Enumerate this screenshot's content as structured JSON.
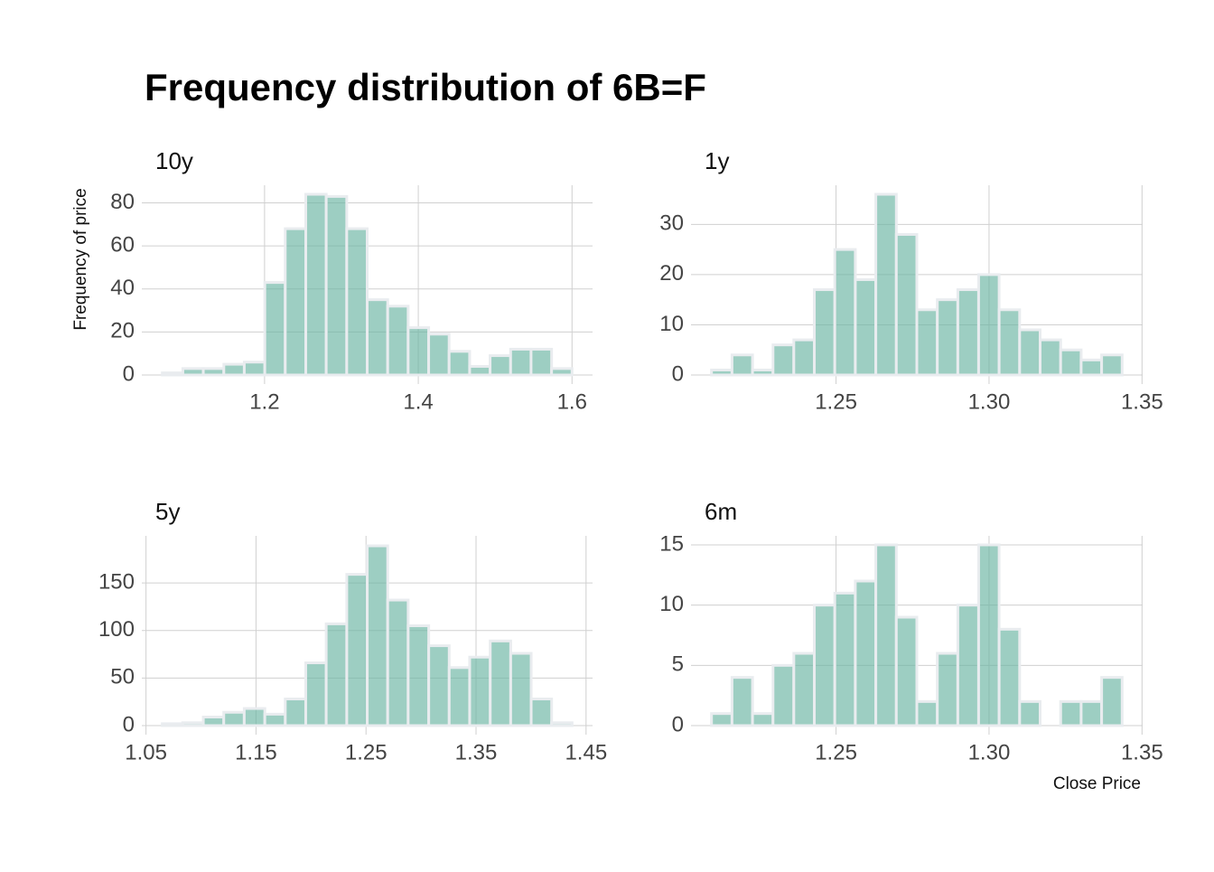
{
  "title": "Frequency distribution of 6B=F",
  "ylabel": "Frequency of price",
  "xlabel": "Close Price",
  "chart_data": [
    {
      "type": "histogram",
      "title": "10y",
      "color": "#69b3a2",
      "grid": true,
      "bins": [
        1.067,
        1.0937,
        1.1203,
        1.147,
        1.1736,
        1.2003,
        1.2269,
        1.2536,
        1.2802,
        1.3069,
        1.3335,
        1.3602,
        1.3868,
        1.4135,
        1.4401,
        1.4668,
        1.4934,
        1.5201,
        1.5467,
        1.5734,
        1.6
      ],
      "counts": [
        1,
        3,
        3,
        5,
        6,
        43,
        68,
        84,
        83,
        68,
        35,
        32,
        22,
        19,
        11,
        4,
        9,
        12,
        12,
        3
      ],
      "xlim": [
        1.0403,
        1.6267
      ],
      "ylim": [
        -4.2,
        88.2
      ],
      "xticks": [
        1.2,
        1.4,
        1.6
      ],
      "yticks": [
        0,
        20,
        40,
        60,
        80
      ]
    },
    {
      "type": "histogram",
      "title": "1y",
      "color": "#69b3a2",
      "grid": true,
      "bins": [
        1.2093,
        1.216,
        1.2227,
        1.2294,
        1.2362,
        1.2429,
        1.2496,
        1.2563,
        1.263,
        1.2697,
        1.2764,
        1.2831,
        1.2898,
        1.2966,
        1.3033,
        1.31,
        1.3167,
        1.3234,
        1.3301,
        1.3368,
        1.3435
      ],
      "counts": [
        1,
        4,
        1,
        6,
        7,
        17,
        25,
        19,
        36,
        28,
        13,
        15,
        17,
        20,
        13,
        9,
        7,
        5,
        3,
        4
      ],
      "xlim": [
        1.2026,
        1.3502
      ],
      "ylim": [
        -1.8,
        37.8
      ],
      "xticks": [
        1.25,
        {
          "value": 1.3,
          "label": "1.30"
        },
        1.35
      ],
      "yticks": [
        0,
        10,
        20,
        30
      ]
    },
    {
      "type": "histogram",
      "title": "5y",
      "color": "#69b3a2",
      "grid": true,
      "bins": [
        1.0648,
        1.0834,
        1.1021,
        1.1207,
        1.1393,
        1.158,
        1.1766,
        1.1952,
        1.2138,
        1.2325,
        1.2511,
        1.2697,
        1.2883,
        1.307,
        1.3256,
        1.3442,
        1.3629,
        1.3815,
        1.4001,
        1.4187,
        1.4373
      ],
      "counts": [
        2,
        3,
        9,
        14,
        18,
        12,
        28,
        66,
        107,
        159,
        189,
        132,
        105,
        84,
        61,
        72,
        89,
        76,
        28,
        3
      ],
      "xlim": [
        1.0462,
        1.4559
      ],
      "ylim": [
        -9.5,
        199.5
      ],
      "xticks": [
        1.05,
        1.15,
        1.25,
        1.35,
        1.45
      ],
      "yticks": [
        0,
        50,
        100,
        150
      ]
    },
    {
      "type": "histogram",
      "title": "6m",
      "color": "#69b3a2",
      "grid": true,
      "bins": [
        1.2093,
        1.216,
        1.2227,
        1.2294,
        1.2362,
        1.2429,
        1.2496,
        1.2563,
        1.263,
        1.2697,
        1.2764,
        1.2831,
        1.2898,
        1.2966,
        1.3033,
        1.31,
        1.3167,
        1.3234,
        1.3301,
        1.3368,
        1.3435
      ],
      "counts": [
        1,
        4,
        1,
        5,
        6,
        10,
        11,
        12,
        15,
        9,
        2,
        6,
        10,
        15,
        8,
        2,
        0,
        2,
        2,
        4
      ],
      "xlim": [
        1.2026,
        1.3502
      ],
      "ylim": [
        -0.75,
        15.75
      ],
      "xticks": [
        1.25,
        {
          "value": 1.3,
          "label": "1.30"
        },
        1.35
      ],
      "yticks": [
        0,
        5,
        10,
        15
      ]
    }
  ]
}
